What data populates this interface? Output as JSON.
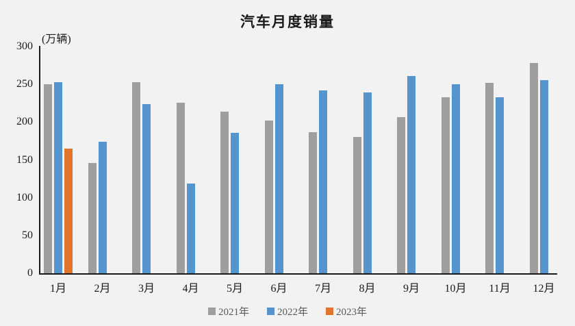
{
  "title": "汽车月度销量",
  "unit_label": "(万辆)",
  "colors": {
    "background": "#f2f2f2",
    "axis": "#1a1a1a",
    "tick_text": "#1a1a1a",
    "legend_text": "#595959",
    "series_2021": "#9e9e9e",
    "series_2022": "#5694ce",
    "series_2023": "#e1752e"
  },
  "chart_data": {
    "type": "bar",
    "title": "汽车月度销量",
    "ylabel": "(万辆)",
    "xlabel": "",
    "categories": [
      "1月",
      "2月",
      "3月",
      "4月",
      "5月",
      "6月",
      "7月",
      "8月",
      "9月",
      "10月",
      "11月",
      "12月"
    ],
    "series": [
      {
        "name": "2021年",
        "color": "#9e9e9e",
        "values": [
          250,
          146,
          253,
          226,
          214,
          202,
          187,
          180,
          207,
          233,
          252,
          278
        ]
      },
      {
        "name": "2022年",
        "color": "#5694ce",
        "values": [
          253,
          174,
          224,
          119,
          186,
          250,
          242,
          239,
          261,
          250,
          233,
          256
        ]
      },
      {
        "name": "2023年",
        "color": "#e1752e",
        "values": [
          165,
          null,
          null,
          null,
          null,
          null,
          null,
          null,
          null,
          null,
          null,
          null
        ]
      }
    ],
    "ylim": [
      0,
      300
    ],
    "ytick_step": 50,
    "ytick_labels": [
      "0",
      "50",
      "100",
      "150",
      "200",
      "250",
      "300"
    ],
    "grid": false,
    "legend_position": "bottom"
  }
}
